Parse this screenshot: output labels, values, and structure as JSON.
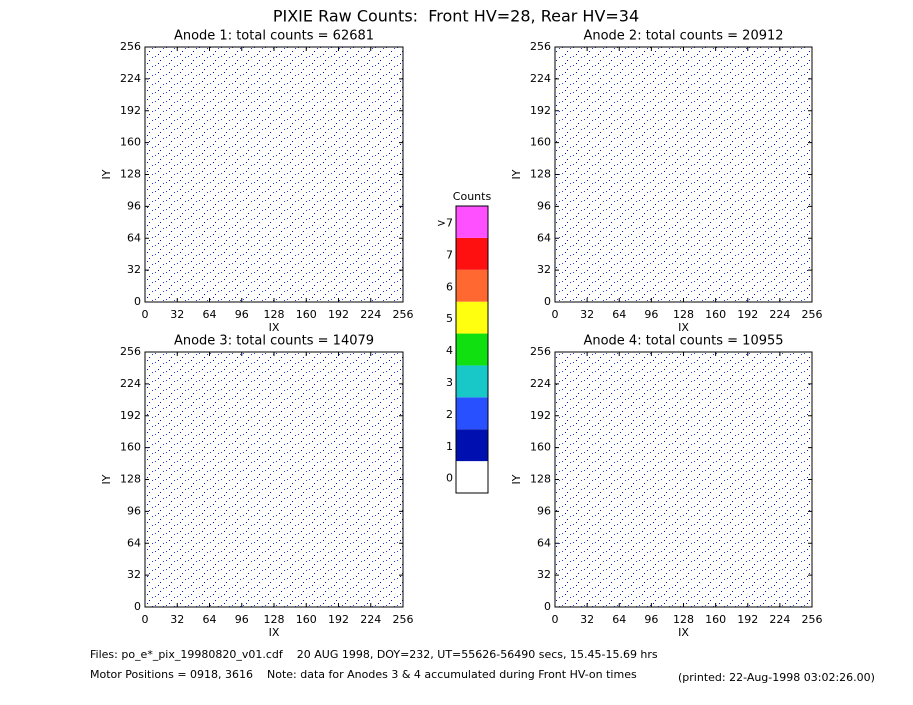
{
  "title": "PIXIE Raw Counts:  Front HV=28, Rear HV=34",
  "chart_data": [
    {
      "type": "heatmap",
      "title": "Anode 1: total counts = 62681",
      "x_label": "IX",
      "y_label": "IY",
      "xlim": [
        0,
        256
      ],
      "ylim": [
        0,
        256
      ],
      "xticks": [
        0,
        32,
        64,
        96,
        128,
        160,
        192,
        224,
        256
      ],
      "yticks": [
        0,
        32,
        64,
        96,
        128,
        160,
        192,
        224,
        256
      ]
    },
    {
      "type": "heatmap",
      "title": "Anode 2: total counts = 20912",
      "x_label": "IX",
      "y_label": "IY",
      "xlim": [
        0,
        256
      ],
      "ylim": [
        0,
        256
      ],
      "xticks": [
        0,
        32,
        64,
        96,
        128,
        160,
        192,
        224,
        256
      ],
      "yticks": [
        0,
        32,
        64,
        96,
        128,
        160,
        192,
        224,
        256
      ]
    },
    {
      "type": "heatmap",
      "title": "Anode 3: total counts = 14079",
      "x_label": "IX",
      "y_label": "IY",
      "xlim": [
        0,
        256
      ],
      "ylim": [
        0,
        256
      ],
      "xticks": [
        0,
        32,
        64,
        96,
        128,
        160,
        192,
        224,
        256
      ],
      "yticks": [
        0,
        32,
        64,
        96,
        128,
        160,
        192,
        224,
        256
      ]
    },
    {
      "type": "heatmap",
      "title": "Anode 4: total counts = 10955",
      "x_label": "IX",
      "y_label": "IY",
      "xlim": [
        0,
        256
      ],
      "ylim": [
        0,
        256
      ],
      "xticks": [
        0,
        32,
        64,
        96,
        128,
        160,
        192,
        224,
        256
      ],
      "yticks": [
        0,
        32,
        64,
        96,
        128,
        160,
        192,
        224,
        256
      ]
    }
  ],
  "colorbar": {
    "title": "Counts",
    "labels": [
      "0",
      "1",
      "2",
      "3",
      "4",
      "5",
      "6",
      "7",
      ">7"
    ],
    "colors": [
      "#ffffff",
      "#0010b0",
      "#2850ff",
      "#18c8c8",
      "#10e010",
      "#ffff10",
      "#ff6830",
      "#ff1010",
      "#ff50ff"
    ]
  },
  "footer": {
    "files": "Files: po_e*_pix_19980820_v01.cdf    20 AUG 1998, DOY=232, UT=55626-56490 secs, 15.45-15.69 hrs",
    "motor": "Motor Positions = 0918, 3616    Note: data for Anodes 3 & 4 accumulated during Front HV-on times",
    "printed": "(printed: 22-Aug-1998 03:02:26.00)"
  }
}
